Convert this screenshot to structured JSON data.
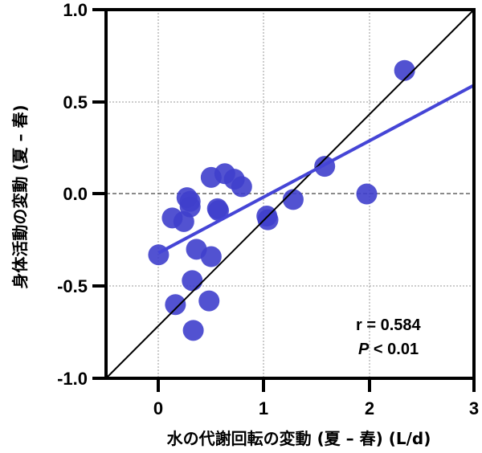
{
  "chart_data": {
    "type": "scatter",
    "title": "",
    "xlabel": "水の代謝回転の変動 (夏 – 春) (L/d)",
    "ylabel": "身体活動の変動 (夏 – 春)",
    "xlim": [
      -0.5,
      3
    ],
    "ylim": [
      -1.0,
      1.0
    ],
    "xticks": [
      "0",
      "1",
      "2",
      "3"
    ],
    "yticks": [
      "1.0",
      "0.5",
      "0.0",
      "-0.5",
      "-1.0"
    ],
    "grid": true,
    "legend": null,
    "point_color": "#3f3fcc",
    "regression_color": "#4545d6",
    "identity_line_color": "#000000",
    "series": [
      {
        "name": "participants",
        "points": [
          {
            "x": 2.34,
            "y": 0.67
          },
          {
            "x": 1.58,
            "y": 0.15
          },
          {
            "x": 1.98,
            "y": 0.0
          },
          {
            "x": 1.28,
            "y": -0.03
          },
          {
            "x": 1.03,
            "y": -0.12
          },
          {
            "x": 1.04,
            "y": -0.14
          },
          {
            "x": 0.0,
            "y": -0.33
          },
          {
            "x": 0.13,
            "y": -0.13
          },
          {
            "x": 0.24,
            "y": -0.15
          },
          {
            "x": 0.3,
            "y": -0.07
          },
          {
            "x": 0.27,
            "y": -0.02
          },
          {
            "x": 0.3,
            "y": -0.04
          },
          {
            "x": 0.56,
            "y": -0.08
          },
          {
            "x": 0.57,
            "y": -0.09
          },
          {
            "x": 0.5,
            "y": 0.09
          },
          {
            "x": 0.63,
            "y": 0.11
          },
          {
            "x": 0.72,
            "y": 0.08
          },
          {
            "x": 0.79,
            "y": 0.04
          },
          {
            "x": 0.36,
            "y": -0.3
          },
          {
            "x": 0.5,
            "y": -0.34
          },
          {
            "x": 0.32,
            "y": -0.47
          },
          {
            "x": 0.16,
            "y": -0.6
          },
          {
            "x": 0.48,
            "y": -0.58
          },
          {
            "x": 0.33,
            "y": -0.74
          }
        ]
      }
    ],
    "regression_line": {
      "x": [
        0.0,
        3.0
      ],
      "y": [
        -0.32,
        0.59
      ]
    },
    "identity_line": {
      "x": [
        -0.5,
        3.0
      ],
      "y": [
        -1.0,
        1.0
      ]
    },
    "annotations": [
      "r = 0.584",
      "P < 0.01"
    ]
  },
  "labels": {
    "x_title": "水の代謝回転の変動 (夏 – 春) (L/d)",
    "y_title": "身体活動の変動 (夏 – 春)",
    "r_text": "r = 0.584",
    "p_italic": "P",
    "p_rest": " < 0.01",
    "xt0": "0",
    "xt1": "1",
    "xt2": "2",
    "xt3": "3",
    "yt0": "1.0",
    "yt1": "0.5",
    "yt2": "0.0",
    "yt3": "-0.5",
    "yt4": "-1.0"
  }
}
